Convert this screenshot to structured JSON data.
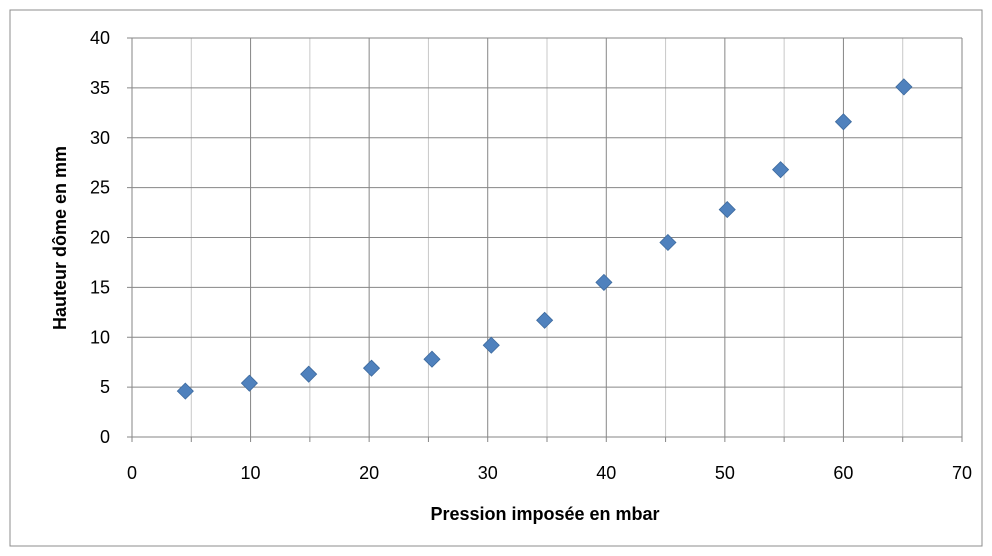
{
  "chart_data": {
    "type": "scatter",
    "title": "",
    "xlabel": "Pression imposée en mbar",
    "ylabel": "Hauteur dôme en mm",
    "xlim": [
      0,
      70
    ],
    "ylim": [
      0,
      40
    ],
    "x_major_ticks": [
      0,
      10,
      20,
      30,
      40,
      50,
      60,
      70
    ],
    "x_minor_ticks": [
      5,
      15,
      25,
      35,
      45,
      55,
      65
    ],
    "y_ticks": [
      0,
      5,
      10,
      15,
      20,
      25,
      30,
      35,
      40
    ],
    "grid": true,
    "legend": "none",
    "marker": "diamond",
    "marker_color": "#4F81BD",
    "series": [
      {
        "points": [
          {
            "x": 4.5,
            "y": 4.6
          },
          {
            "x": 9.9,
            "y": 5.4
          },
          {
            "x": 14.9,
            "y": 6.3
          },
          {
            "x": 20.2,
            "y": 6.9
          },
          {
            "x": 25.3,
            "y": 7.8
          },
          {
            "x": 30.3,
            "y": 9.2
          },
          {
            "x": 34.8,
            "y": 11.7
          },
          {
            "x": 39.8,
            "y": 15.5
          },
          {
            "x": 45.2,
            "y": 19.5
          },
          {
            "x": 50.2,
            "y": 22.8
          },
          {
            "x": 54.7,
            "y": 26.8
          },
          {
            "x": 60.0,
            "y": 31.6
          },
          {
            "x": 65.1,
            "y": 35.1
          }
        ]
      }
    ]
  }
}
